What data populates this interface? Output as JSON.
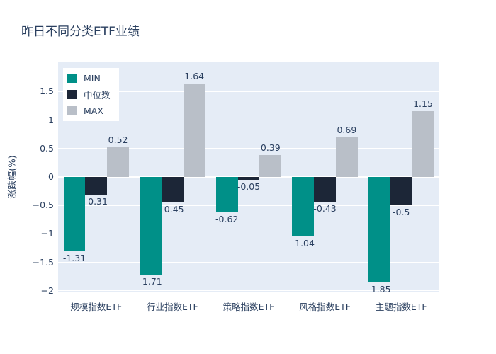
{
  "chart_data": {
    "type": "bar",
    "title": "昨日不同分类ETF业绩",
    "xlabel": "",
    "ylabel": "涨跌幅(%)",
    "categories": [
      "规模指数ETF",
      "行业指数ETF",
      "策略指数ETF",
      "风格指数ETF",
      "主题指数ETF"
    ],
    "series": [
      {
        "name": "MIN",
        "color": "#009088",
        "values": [
          -1.31,
          -1.71,
          -0.62,
          -1.04,
          -1.85
        ],
        "labels": [
          "-1.31",
          "-1.71",
          "-0.62",
          "-1.04",
          "-1.85"
        ]
      },
      {
        "name": "中位数",
        "color": "#1c2637",
        "values": [
          -0.31,
          -0.45,
          -0.05,
          -0.43,
          -0.5
        ],
        "labels": [
          "-0.31",
          "-0.45",
          "-0.05",
          "-0.43",
          "-0.5"
        ]
      },
      {
        "name": "MAX",
        "color": "#b9bfc8",
        "values": [
          0.52,
          1.64,
          0.39,
          0.69,
          1.15
        ],
        "labels": [
          "0.52",
          "1.64",
          "0.39",
          "0.69",
          "1.15"
        ]
      }
    ],
    "yticks": [
      {
        "value": -2,
        "label": "−2"
      },
      {
        "value": -1.5,
        "label": "−1.5"
      },
      {
        "value": -1,
        "label": "−1"
      },
      {
        "value": -0.5,
        "label": "−0.5"
      },
      {
        "value": 0,
        "label": "0"
      },
      {
        "value": 0.5,
        "label": "0.5"
      },
      {
        "value": 1,
        "label": "1"
      },
      {
        "value": 1.5,
        "label": "1.5"
      }
    ],
    "ylim": [
      -2.025,
      2.025
    ],
    "grid": true,
    "legend_position": "top-left",
    "colors": {
      "plot_bg": "#e5ecf6",
      "grid": "#ffffff",
      "text": "#2a3f5f",
      "page_bg": "#ffffff"
    }
  }
}
